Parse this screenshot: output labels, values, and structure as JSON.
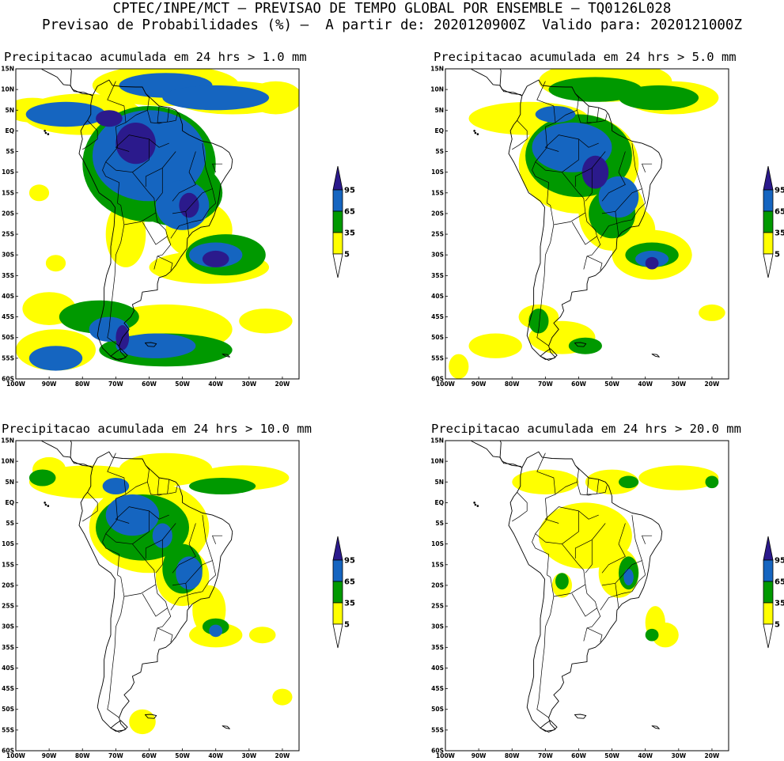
{
  "header": {
    "line1": "CPTEC/INPE/MCT – PREVISAO DE TEMPO GLOBAL POR ENSEMBLE – TQ0126L028",
    "line2": "Previsao de Probabilidades (%) –  A partir de: 2020120900Z  Valido para: 2020121000Z"
  },
  "panels": [
    {
      "title": "Precipitacao acumulada em 24 hrs > 1.0 mm",
      "level": 0
    },
    {
      "title": "Precipitacao acumulada em 24 hrs > 5.0 mm",
      "level": 1
    },
    {
      "title": "Precipitacao acumulada em 24 hrs > 10.0 mm",
      "level": 2
    },
    {
      "title": "Precipitacao acumulada em 24 hrs > 20.0 mm",
      "level": 3
    }
  ],
  "axes": {
    "lat_labels": [
      "15N",
      "10N",
      "5N",
      "EQ",
      "5S",
      "10S",
      "15S",
      "20S",
      "25S",
      "30S",
      "35S",
      "40S",
      "45S",
      "50S",
      "55S",
      "60S"
    ],
    "lon_labels": [
      "100W",
      "90W",
      "80W",
      "70W",
      "60W",
      "50W",
      "40W",
      "30W",
      "20W"
    ]
  },
  "legend": {
    "labels": [
      "95",
      "65",
      "35",
      "5"
    ],
    "colors": {
      "yellow": "#ffff00",
      "green": "#009900",
      "blue": "#1565c0",
      "navy": "#2b1a8c"
    }
  }
}
